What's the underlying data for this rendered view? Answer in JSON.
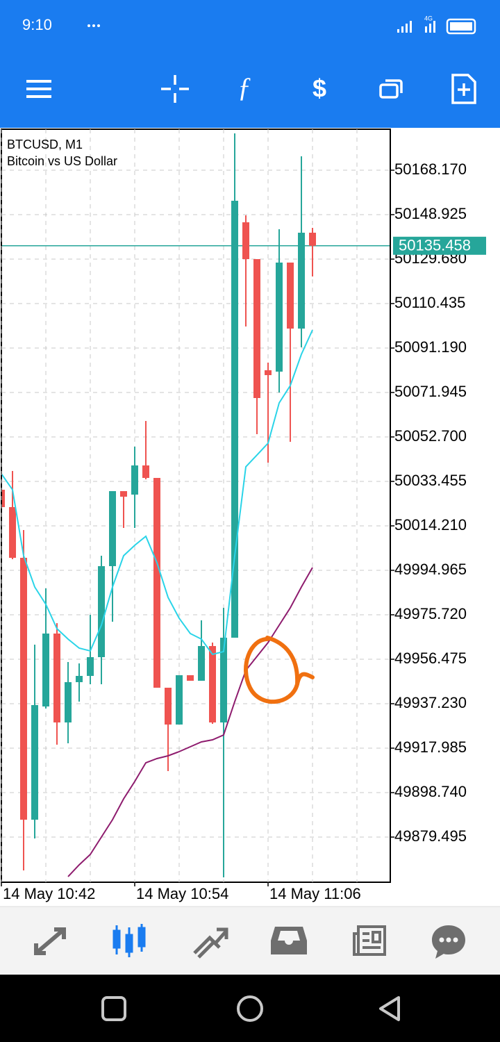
{
  "status_bar": {
    "time": "9:10",
    "network": "4G"
  },
  "chart_data": {
    "type": "candlestick",
    "title": "BTCUSD, M1",
    "subtitle": "Bitcoin vs US Dollar",
    "categories": [
      "14 May 10:42",
      null,
      null,
      null,
      null,
      null,
      null,
      null,
      null,
      null,
      null,
      null,
      "14 May 10:54",
      null,
      null,
      null,
      null,
      null,
      null,
      null,
      null,
      null,
      null,
      null,
      "14 May 11:06",
      null,
      null,
      null,
      null
    ],
    "open": [
      50029.85,
      50022.33,
      50000.38,
      49887.02,
      49936.03,
      49967.6,
      49929.11,
      49946.55,
      49949.26,
      49957.38,
      49996.77,
      50029.25,
      50027.74,
      50040.37,
      50034.96,
      49944.15,
      49928.21,
      49949.56,
      49947.16,
      49962.19,
      49929.11,
      49965.8,
      50145.62,
      50129.68,
      50081.57,
      50080.97,
      50128.18,
      50099.61,
      50141.11
    ],
    "high": [
      50029.85,
      50037.97,
      50012.41,
      49962.79,
      49987.15,
      49972.11,
      49955.27,
      49954.67,
      49975.72,
      50001.28,
      50029.25,
      50029.25,
      50048.49,
      50059.62,
      50034.96,
      49944.15,
      49949.56,
      49949.56,
      49973.32,
      49963.69,
      49978.73,
      50184.11,
      50148.62,
      50129.68,
      50084.88,
      50142.61,
      50128.18,
      50174.18,
      50143.21
    ],
    "low": [
      50022.33,
      49999.78,
      49865.06,
      49878.9,
      49935.13,
      49919.49,
      49920.09,
      49938.13,
      49945.65,
      49945.65,
      49972.71,
      50013.31,
      50013.31,
      50034.36,
      49944.15,
      49908.06,
      49928.21,
      49947.16,
      49947.16,
      49928.51,
      49862.06,
      49965.8,
      50100.51,
      50053.9,
      50041.58,
      50071.95,
      50050.6,
      50091.49,
      50122.16
    ],
    "close": [
      50022.33,
      50000.38,
      49887.02,
      49936.63,
      49967.6,
      49929.11,
      49946.55,
      49949.26,
      49957.38,
      49996.77,
      50029.25,
      50026.84,
      50040.37,
      50034.96,
      49944.15,
      49928.21,
      49949.56,
      49947.16,
      49962.19,
      49929.11,
      49965.8,
      50154.94,
      50129.68,
      50069.54,
      50079.46,
      50128.18,
      50099.61,
      50141.11,
      50135.46
    ],
    "up_color": "#26a69a",
    "down_color": "#ef5350",
    "overlays": [
      {
        "color": "#2ad4e8",
        "values": [
          50036.76,
          50029.85,
          50001.28,
          49987.75,
          49980.23,
          49969.71,
          49965.2,
          49961.29,
          49960.09,
          49971.21,
          49987.75,
          50001.28,
          50005.79,
          50009.7,
          49998.27,
          49983.24,
          49974.22,
          49967.6,
          49965.2,
          49958.58,
          49959.78,
          50001.28,
          50039.77,
          50044.88,
          50049.99,
          50067.44,
          50074.95,
          50088.48,
          50099.01
        ]
      },
      {
        "color": "#8e1c6e",
        "values": [
          null,
          null,
          null,
          null,
          null,
          null,
          49862.36,
          49867.47,
          49871.98,
          49879.5,
          49887.02,
          49896.04,
          49903.55,
          49911.67,
          49913.48,
          49914.68,
          49916.48,
          49918.59,
          49920.69,
          49921.6,
          49923.7,
          49938.13,
          49951.67,
          49957.68,
          49963.69,
          49971.21,
          49978.73,
          49987.75,
          49996.17
        ]
      }
    ],
    "current_price": 50135.458,
    "current_price_color": "#26a69a",
    "ylim": [
      49859.95,
      50185.91
    ],
    "yticks": [
      {
        "value": 50168.17,
        "label": "50168.170"
      },
      {
        "value": 50148.925,
        "label": "50148.925"
      },
      {
        "value": 50129.68,
        "label": "50129.680"
      },
      {
        "value": 50110.435,
        "label": "50110.435"
      },
      {
        "value": 50091.19,
        "label": "50091.190"
      },
      {
        "value": 50071.945,
        "label": "50071.945"
      },
      {
        "value": 50052.7,
        "label": "50052.700"
      },
      {
        "value": 50033.455,
        "label": "50033.455"
      },
      {
        "value": 50014.21,
        "label": "50014.210"
      },
      {
        "value": 49994.965,
        "label": "49994.965"
      },
      {
        "value": 49975.72,
        "label": "49975.720"
      },
      {
        "value": 49956.475,
        "label": "49956.475"
      },
      {
        "value": 49937.23,
        "label": "49937.230"
      },
      {
        "value": 49917.985,
        "label": "49917.985"
      },
      {
        "value": 49898.74,
        "label": "49898.740"
      },
      {
        "value": 49879.495,
        "label": "49879.495"
      }
    ],
    "grid": true
  }
}
